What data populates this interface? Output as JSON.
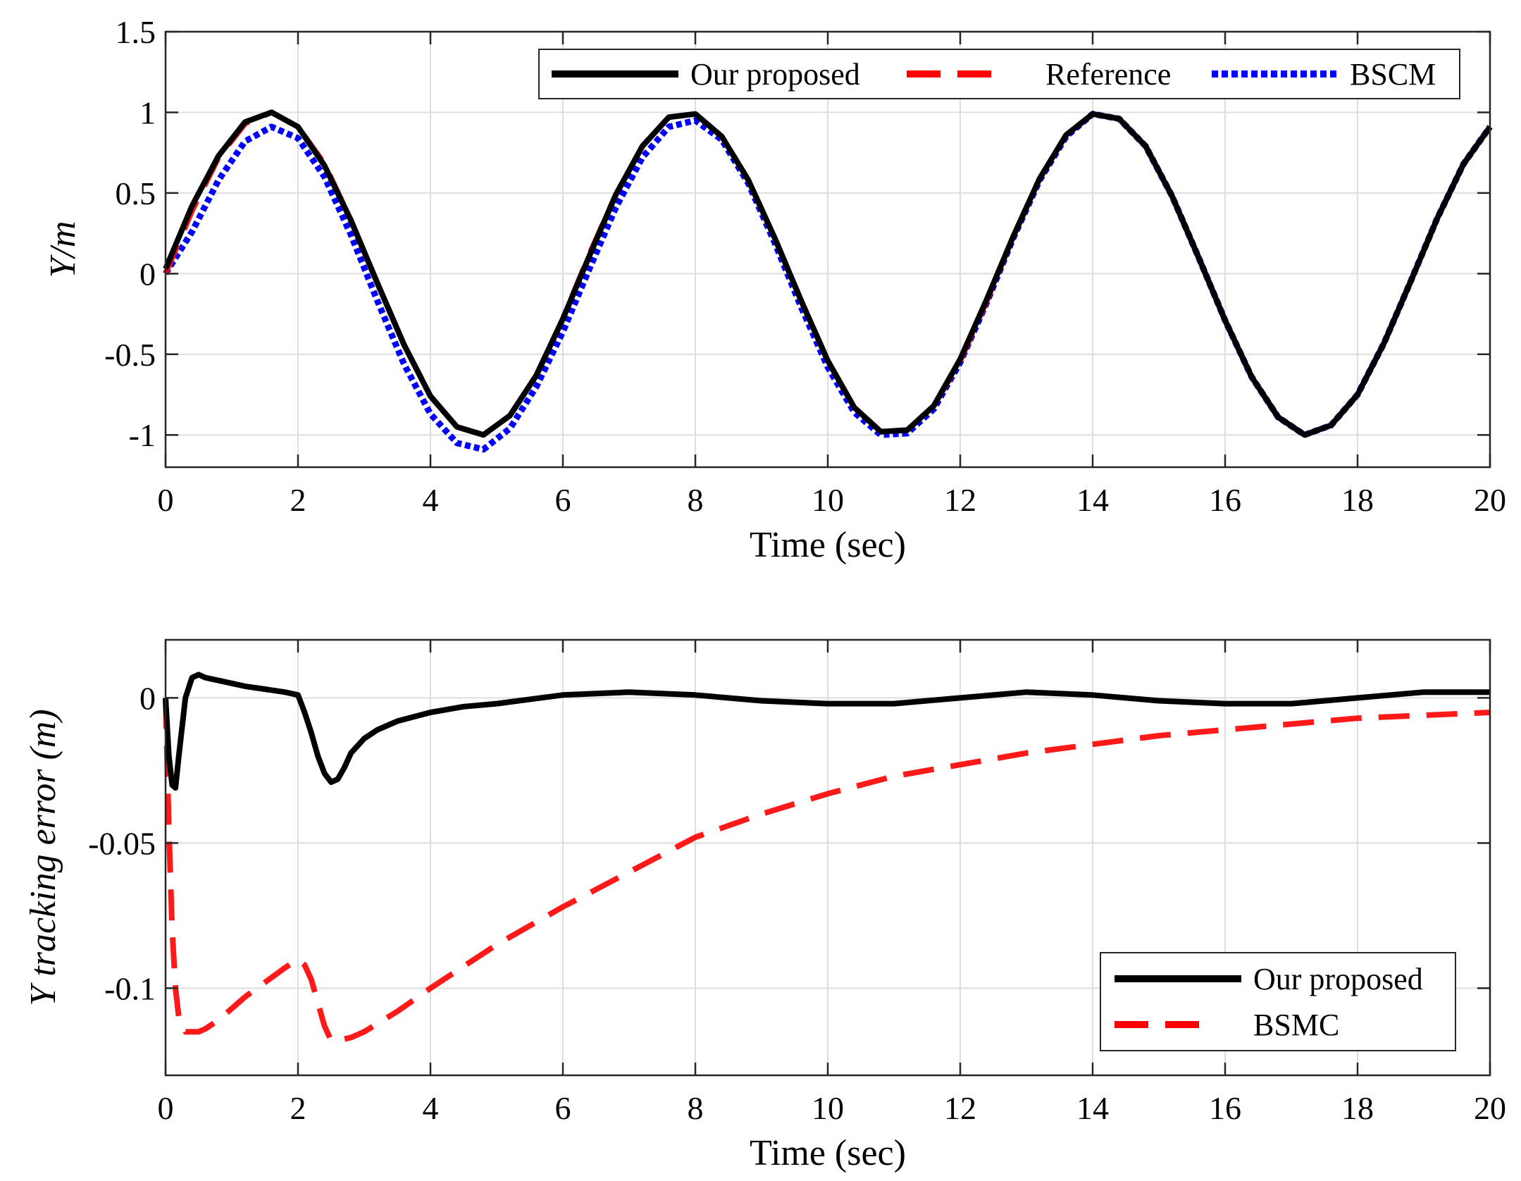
{
  "chart_data": [
    {
      "type": "line",
      "title": "",
      "xlabel": "Time (sec)",
      "ylabel": "Y/m",
      "xlim": [
        0,
        20
      ],
      "ylim": [
        -1.2,
        1.5
      ],
      "xticks": [
        0,
        2,
        4,
        6,
        8,
        10,
        12,
        14,
        16,
        18,
        20
      ],
      "xtick_labels": [
        "0",
        "2",
        "4",
        "6",
        "8",
        "10",
        "12",
        "14",
        "16",
        "18",
        "20"
      ],
      "yticks": [
        1.5,
        1,
        0.5,
        0,
        -0.5,
        -1
      ],
      "ytick_labels": [
        "1.5",
        "1",
        "0.5",
        "0",
        "-0.5",
        "-1"
      ],
      "grid": true,
      "legend_position": "top-right",
      "legend_layout": "horizontal",
      "series": [
        {
          "name": "Our proposed",
          "color": "#000000",
          "style": "solid",
          "x": [
            0,
            0.4,
            0.8,
            1.2,
            1.6,
            2.0,
            2.4,
            2.8,
            3.2,
            3.6,
            4.0,
            4.4,
            4.8,
            5.2,
            5.6,
            6.0,
            6.4,
            6.8,
            7.2,
            7.6,
            8.0,
            8.4,
            8.8,
            9.2,
            9.6,
            10.0,
            10.4,
            10.8,
            11.2,
            11.6,
            12.0,
            12.4,
            12.8,
            13.2,
            13.6,
            14.0,
            14.4,
            14.8,
            15.2,
            15.6,
            16.0,
            16.4,
            16.8,
            17.2,
            17.6,
            18.0,
            18.4,
            18.8,
            19.2,
            19.6,
            20.0
          ],
          "y": [
            0.03,
            0.42,
            0.73,
            0.94,
            1.0,
            0.91,
            0.67,
            0.33,
            -0.06,
            -0.44,
            -0.76,
            -0.95,
            -1.0,
            -0.88,
            -0.63,
            -0.28,
            0.11,
            0.49,
            0.79,
            0.97,
            0.99,
            0.85,
            0.58,
            0.22,
            -0.17,
            -0.54,
            -0.83,
            -0.98,
            -0.97,
            -0.82,
            -0.53,
            -0.16,
            0.23,
            0.59,
            0.86,
            0.99,
            0.96,
            0.79,
            0.48,
            0.1,
            -0.29,
            -0.64,
            -0.89,
            -1.0,
            -0.94,
            -0.75,
            -0.43,
            -0.05,
            0.34,
            0.68,
            0.91
          ]
        },
        {
          "name": "Reference",
          "color": "#ff0000",
          "style": "dashed",
          "x": [
            0,
            0.4,
            0.8,
            1.2,
            1.6,
            2.0,
            2.4,
            2.8,
            3.2,
            3.6,
            4.0,
            4.4,
            4.8,
            5.2,
            5.6,
            6.0,
            6.4,
            6.8,
            7.2,
            7.6,
            8.0,
            8.4,
            8.8,
            9.2,
            9.6,
            10.0,
            10.4,
            10.8,
            11.2,
            11.6,
            12.0,
            12.4,
            12.8,
            13.2,
            13.6,
            14.0,
            14.4,
            14.8,
            15.2,
            15.6,
            16.0,
            16.4,
            16.8,
            17.2,
            17.6,
            18.0,
            18.4,
            18.8,
            19.2,
            19.6,
            20.0
          ],
          "y": [
            0.0,
            0.39,
            0.72,
            0.93,
            1.0,
            0.91,
            0.68,
            0.33,
            -0.06,
            -0.44,
            -0.76,
            -0.95,
            -1.0,
            -0.88,
            -0.63,
            -0.28,
            0.12,
            0.49,
            0.79,
            0.97,
            0.99,
            0.85,
            0.58,
            0.22,
            -0.17,
            -0.54,
            -0.83,
            -0.98,
            -0.97,
            -0.82,
            -0.54,
            -0.17,
            0.23,
            0.59,
            0.86,
            0.99,
            0.96,
            0.79,
            0.48,
            0.1,
            -0.29,
            -0.64,
            -0.89,
            -1.0,
            -0.94,
            -0.75,
            -0.43,
            -0.05,
            0.34,
            0.68,
            0.91
          ]
        },
        {
          "name": "BSCM",
          "color": "#0000ff",
          "style": "dotted",
          "x": [
            0,
            0.4,
            0.8,
            1.2,
            1.6,
            2.0,
            2.4,
            2.8,
            3.2,
            3.6,
            4.0,
            4.4,
            4.8,
            5.2,
            5.6,
            6.0,
            6.4,
            6.8,
            7.2,
            7.6,
            8.0,
            8.4,
            8.8,
            9.2,
            9.6,
            10.0,
            10.4,
            10.8,
            11.2,
            11.6,
            12.0,
            12.4,
            12.8,
            13.2,
            13.6,
            14.0,
            14.4,
            14.8,
            15.2,
            15.6,
            16.0,
            16.4,
            16.8,
            17.2,
            17.6,
            18.0,
            18.4,
            18.8,
            19.2,
            19.6,
            20.0
          ],
          "y": [
            0.0,
            0.26,
            0.58,
            0.82,
            0.91,
            0.84,
            0.6,
            0.24,
            -0.17,
            -0.56,
            -0.87,
            -1.05,
            -1.09,
            -0.96,
            -0.7,
            -0.36,
            0.03,
            0.41,
            0.72,
            0.91,
            0.95,
            0.83,
            0.56,
            0.19,
            -0.21,
            -0.58,
            -0.86,
            -1.0,
            -0.99,
            -0.84,
            -0.55,
            -0.18,
            0.22,
            0.58,
            0.85,
            0.99,
            0.96,
            0.79,
            0.48,
            0.1,
            -0.29,
            -0.64,
            -0.89,
            -1.0,
            -0.94,
            -0.75,
            -0.43,
            -0.05,
            0.34,
            0.68,
            0.91
          ]
        }
      ]
    },
    {
      "type": "line",
      "title": "",
      "xlabel": "Time (sec)",
      "ylabel": "Y tracking error (m)",
      "xlim": [
        0,
        20
      ],
      "ylim": [
        -0.13,
        0.02
      ],
      "xticks": [
        0,
        2,
        4,
        6,
        8,
        10,
        12,
        14,
        16,
        18,
        20
      ],
      "xtick_labels": [
        "0",
        "2",
        "4",
        "6",
        "8",
        "10",
        "12",
        "14",
        "16",
        "18",
        "20"
      ],
      "yticks": [
        0,
        -0.05,
        -0.1
      ],
      "ytick_labels": [
        "0",
        "-0.05",
        "-0.1"
      ],
      "grid": true,
      "legend_position": "bottom-right",
      "legend_layout": "vertical",
      "series": [
        {
          "name": "Our proposed",
          "color": "#000000",
          "style": "solid",
          "x": [
            0,
            0.05,
            0.1,
            0.15,
            0.2,
            0.3,
            0.4,
            0.5,
            0.6,
            0.8,
            1.0,
            1.2,
            1.5,
            1.8,
            2.0,
            2.1,
            2.2,
            2.3,
            2.4,
            2.5,
            2.6,
            2.7,
            2.8,
            3.0,
            3.2,
            3.5,
            4.0,
            4.5,
            5.0,
            6.0,
            7.0,
            8.0,
            9.0,
            10.0,
            11.0,
            12.0,
            13.0,
            14.0,
            15.0,
            16.0,
            17.0,
            18.0,
            19.0,
            20.0
          ],
          "y": [
            0.0,
            -0.02,
            -0.03,
            -0.031,
            -0.02,
            0.0,
            0.007,
            0.008,
            0.007,
            0.006,
            0.005,
            0.004,
            0.003,
            0.002,
            0.001,
            -0.005,
            -0.012,
            -0.02,
            -0.026,
            -0.029,
            -0.028,
            -0.024,
            -0.019,
            -0.014,
            -0.011,
            -0.008,
            -0.005,
            -0.003,
            -0.002,
            0.001,
            0.002,
            0.001,
            -0.001,
            -0.002,
            -0.002,
            0.0,
            0.002,
            0.001,
            -0.001,
            -0.002,
            -0.002,
            0.0,
            0.002,
            0.002
          ]
        },
        {
          "name": "BSMC",
          "color": "#ff0000",
          "style": "dashed",
          "x": [
            0,
            0.05,
            0.1,
            0.15,
            0.2,
            0.3,
            0.4,
            0.5,
            0.6,
            0.8,
            1.0,
            1.2,
            1.5,
            1.8,
            2.0,
            2.1,
            2.2,
            2.3,
            2.4,
            2.5,
            2.6,
            2.8,
            3.0,
            3.5,
            4.0,
            5.0,
            6.0,
            7.0,
            8.0,
            9.0,
            10.0,
            11.0,
            12.0,
            13.0,
            14.0,
            15.0,
            16.0,
            17.0,
            18.0,
            19.0,
            20.0
          ],
          "y": [
            0.0,
            -0.045,
            -0.08,
            -0.1,
            -0.11,
            -0.115,
            -0.115,
            -0.115,
            -0.114,
            -0.111,
            -0.107,
            -0.103,
            -0.098,
            -0.093,
            -0.09,
            -0.092,
            -0.097,
            -0.105,
            -0.113,
            -0.118,
            -0.118,
            -0.117,
            -0.115,
            -0.108,
            -0.1,
            -0.085,
            -0.072,
            -0.06,
            -0.048,
            -0.04,
            -0.033,
            -0.027,
            -0.023,
            -0.019,
            -0.016,
            -0.013,
            -0.011,
            -0.009,
            -0.007,
            -0.006,
            -0.005
          ]
        }
      ]
    }
  ]
}
